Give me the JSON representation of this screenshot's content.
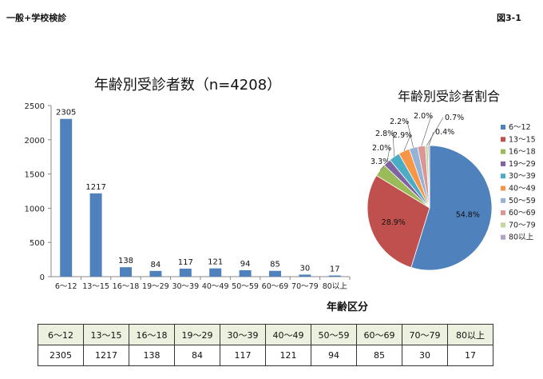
{
  "header": {
    "left": "一般+学校検診",
    "right": "図3-1"
  },
  "chart_data": [
    {
      "type": "bar",
      "title": "年齢別受診者数（n=4208）",
      "xlabel": "年齢区分",
      "ylabel": "",
      "categories": [
        "6～12",
        "13～15",
        "16～18",
        "19～29",
        "30～39",
        "40～49",
        "50～59",
        "60～69",
        "70～79",
        "80以上"
      ],
      "values": [
        2305,
        1217,
        138,
        84,
        117,
        121,
        94,
        85,
        30,
        17
      ],
      "ylim": [
        0,
        2500
      ],
      "yticks": [
        0,
        500,
        1000,
        1500,
        2000,
        2500
      ],
      "grid": false,
      "data_labels": true,
      "colors": {
        "bar": "#4f81bd"
      }
    },
    {
      "type": "pie",
      "title": "年齢別受診者割合",
      "categories": [
        "6～12",
        "13～15",
        "16～18",
        "19～29",
        "30～39",
        "40～49",
        "50～59",
        "60～69",
        "70～79",
        "80以上"
      ],
      "values": [
        54.8,
        28.9,
        3.3,
        2.0,
        2.8,
        2.9,
        2.2,
        2.0,
        0.7,
        0.4
      ],
      "labels": [
        "54.8%",
        "28.9%",
        "3.3%",
        "2.0%",
        "2.8%",
        "2.9%",
        "2.2%",
        "2.0%",
        "0.7%",
        "0.4%"
      ],
      "colors": [
        "#4f81bd",
        "#c0504d",
        "#9bbb59",
        "#8064a2",
        "#4bacc6",
        "#f79646",
        "#95b3d7",
        "#d99694",
        "#c3d69b",
        "#b3a2c7"
      ],
      "legend": "right"
    }
  ],
  "table": {
    "headers": [
      "6～12",
      "13～15",
      "16～18",
      "19～29",
      "30～39",
      "40～49",
      "50～59",
      "60～69",
      "70～79",
      "80以上"
    ],
    "values": [
      "2305",
      "1217",
      "138",
      "84",
      "117",
      "121",
      "94",
      "85",
      "30",
      "17"
    ]
  }
}
